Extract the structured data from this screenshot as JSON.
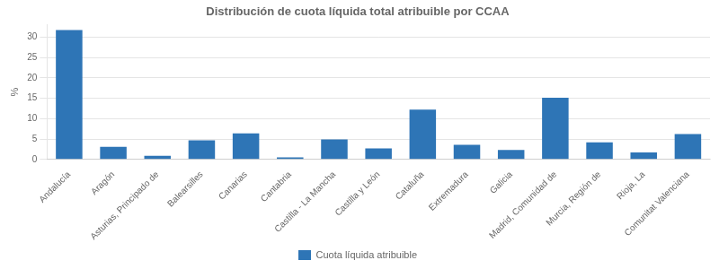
{
  "chart_data": {
    "type": "bar",
    "title": "Distribución de cuota líquida total atribuible por CCAA",
    "categories": [
      "Andalucía",
      "Aragón",
      "Asturias, Principado de",
      "Balearsilles",
      "Canarias",
      "Cantabria",
      "Castilla - La Mancha",
      "Castilla y León",
      "Cataluña",
      "Extremadura",
      "Galicia",
      "Madrid, Comunidad de",
      "Murcia, Región de",
      "Rioja, La",
      "Comunitat Valenciana"
    ],
    "series": [
      {
        "name": "Cuota líquida atribuible",
        "color": "#2E75B6",
        "values": [
          31.7,
          3.1,
          0.9,
          4.7,
          6.4,
          0.5,
          4.9,
          2.7,
          12.2,
          3.6,
          2.3,
          15.1,
          4.2,
          1.7,
          6.2
        ]
      }
    ],
    "ylabel": "%",
    "ylim": [
      0,
      33
    ],
    "yticks": [
      0,
      5,
      10,
      15,
      20,
      25,
      30
    ],
    "grid": true,
    "legend": "bottom"
  }
}
